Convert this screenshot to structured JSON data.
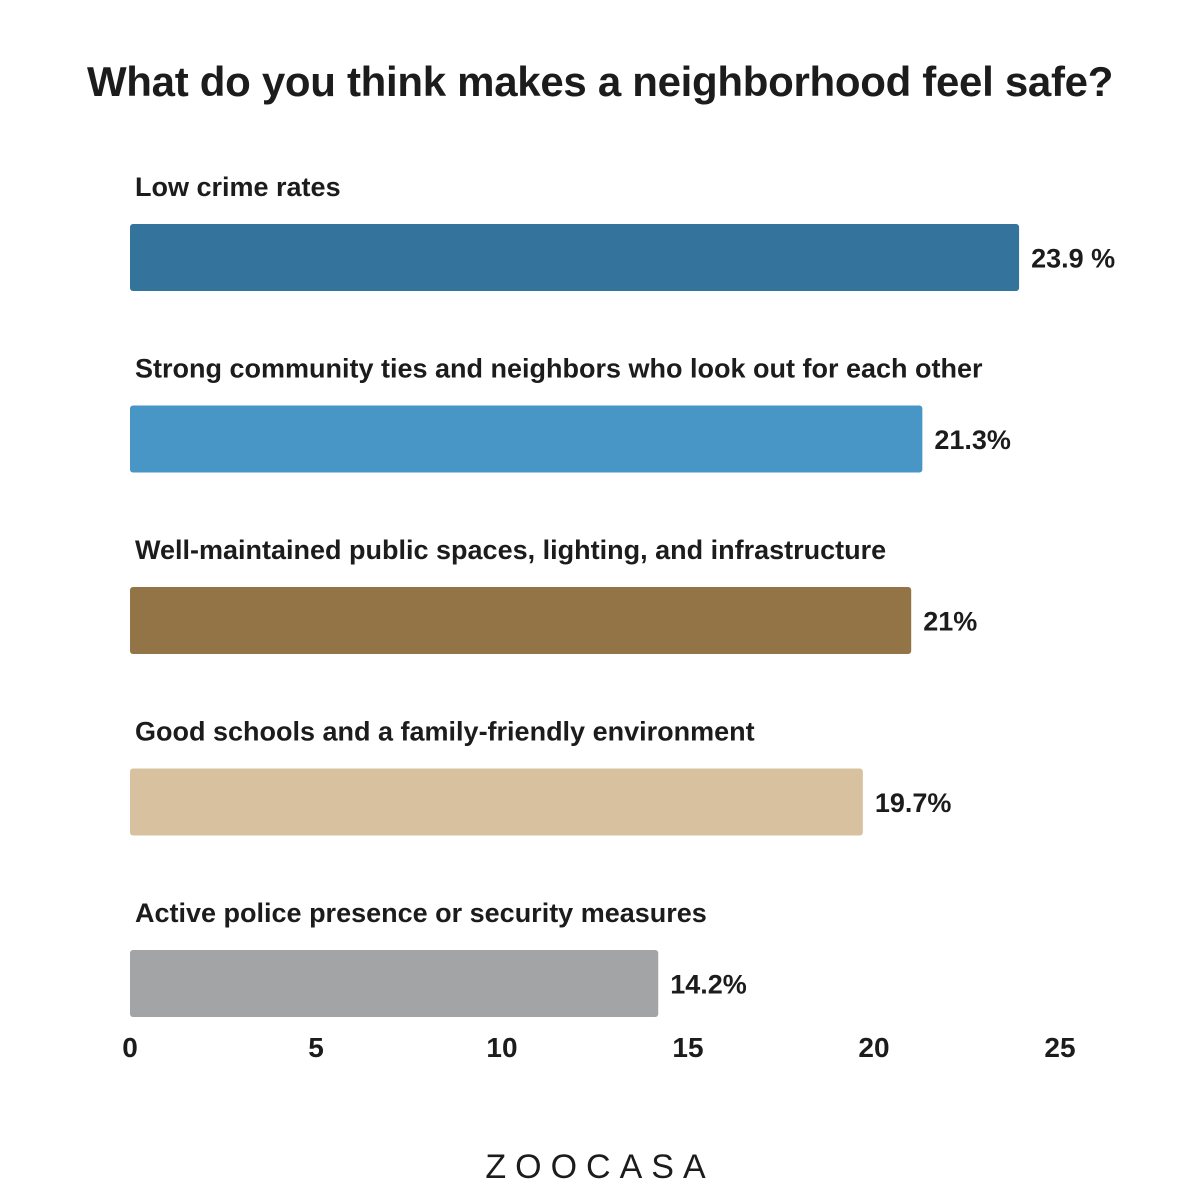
{
  "chart_data": {
    "type": "bar",
    "orientation": "horizontal",
    "title": "What do you think makes a neighborhood feel safe?",
    "categories": [
      "Low crime rates",
      "Strong community ties and neighbors who look out for each other",
      "Well-maintained public spaces, lighting, and infrastructure",
      "Good schools and a family-friendly environment",
      "Active police presence or security measures"
    ],
    "values": [
      23.9,
      21.3,
      21,
      19.7,
      14.2
    ],
    "value_labels": [
      "23.9 %",
      "21.3%",
      "21%",
      "19.7%",
      "14.2%"
    ],
    "colors": [
      "#33739c",
      "#4796c6",
      "#937447",
      "#d8c19e",
      "#a3a4a6"
    ],
    "xlim": [
      0,
      25
    ],
    "xticks": [
      0,
      5,
      10,
      15,
      20,
      25
    ],
    "grid": false,
    "legend": "none"
  },
  "brand": {
    "logo_text": "ZOOCASA"
  }
}
